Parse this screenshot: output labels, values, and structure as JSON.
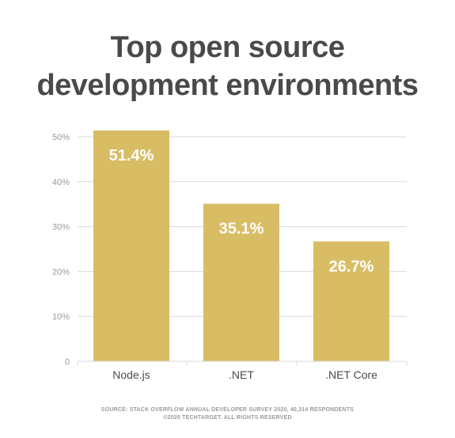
{
  "title": {
    "line1": "Top open source",
    "line2": "development environments"
  },
  "chart_data": {
    "type": "bar",
    "title": "Top open source development environments",
    "categories": [
      "Node.js",
      ".NET",
      ".NET Core"
    ],
    "values": [
      51.4,
      35.1,
      26.7
    ],
    "data_labels": [
      "51.4%",
      "35.1%",
      "26.7%"
    ],
    "ylim": [
      0,
      50
    ],
    "yticks": [
      0,
      10,
      20,
      30,
      40,
      50
    ],
    "ytick_labels": [
      "0",
      "10%",
      "20%",
      "30%",
      "40%",
      "50%"
    ],
    "xlabel": "",
    "ylabel": "",
    "grid": true,
    "legend": "none"
  },
  "colors": {
    "bar": "#d9bd65",
    "grid": "#d9d9d9",
    "title": "#4a4a4a",
    "tick_text": "#9a9a9a",
    "category_text": "#4a4a4a",
    "data_label": "#ffffff"
  },
  "source": {
    "line1": "SOURCE: STACK OVERFLOW ANNUAL DEVELOPER SURVEY 2020, 40,314 RESPONDENTS",
    "line2": "©2020 TECHTARGET. ALL RIGHTS RESERVED"
  }
}
